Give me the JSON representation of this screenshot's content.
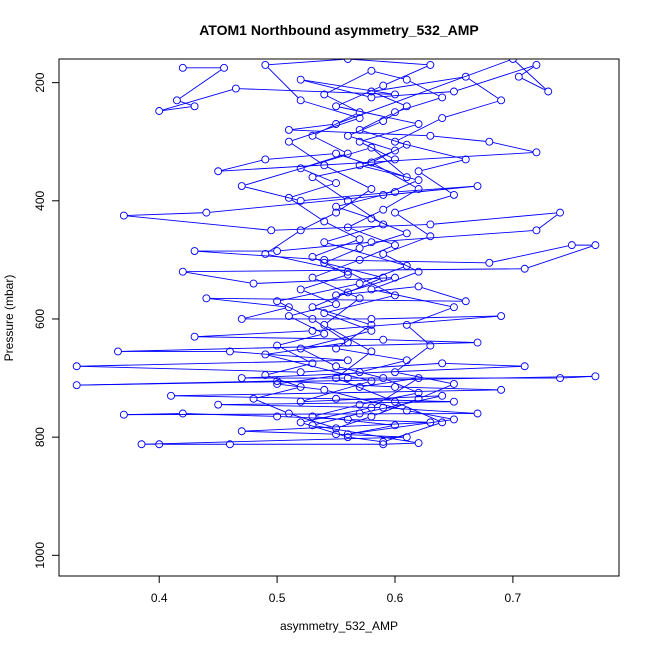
{
  "chart_data": {
    "type": "line",
    "title": "ATOM1 Northbound asymmetry_532_AMP",
    "xlabel": "asymmetry_532_AMP",
    "ylabel": "Pressure (mbar)",
    "xlim": [
      0.315,
      0.79
    ],
    "ylim": [
      1035,
      160
    ],
    "y_reversed": true,
    "xticks": [
      0.4,
      0.5,
      0.6,
      0.7
    ],
    "xtick_labels": [
      "0.4",
      "0.5",
      "0.6",
      "0.7"
    ],
    "yticks": [
      200,
      400,
      600,
      800,
      1000
    ],
    "ytick_labels": [
      "200",
      "400",
      "600",
      "800",
      "1000"
    ],
    "grid": false,
    "legend": "none",
    "marker": "open-circle",
    "colors": {
      "series": "#0000ff",
      "axis": "#000000",
      "background": "#ffffff"
    },
    "series": [
      {
        "points": [
          [
            0.42,
            175
          ],
          [
            0.455,
            175
          ],
          [
            0.415,
            230
          ],
          [
            0.43,
            240
          ],
          [
            0.4,
            248
          ],
          [
            0.465,
            210
          ],
          [
            0.6,
            220
          ],
          [
            0.52,
            195
          ],
          [
            0.58,
            225
          ],
          [
            0.65,
            215
          ],
          [
            0.72,
            170
          ],
          [
            0.705,
            190
          ],
          [
            0.73,
            215
          ],
          [
            0.7,
            160
          ],
          [
            0.55,
            270
          ],
          [
            0.51,
            280
          ],
          [
            0.63,
            290
          ],
          [
            0.68,
            300
          ],
          [
            0.72,
            318
          ],
          [
            0.45,
            350
          ],
          [
            0.49,
            330
          ],
          [
            0.55,
            320
          ],
          [
            0.61,
            360
          ],
          [
            0.58,
            310
          ],
          [
            0.47,
            375
          ],
          [
            0.52,
            400
          ],
          [
            0.6,
            385
          ],
          [
            0.67,
            375
          ],
          [
            0.44,
            420
          ],
          [
            0.37,
            425
          ],
          [
            0.495,
            450
          ],
          [
            0.63,
            440
          ],
          [
            0.74,
            420
          ],
          [
            0.72,
            450
          ],
          [
            0.58,
            470
          ],
          [
            0.5,
            485
          ],
          [
            0.43,
            485
          ],
          [
            0.54,
            500
          ],
          [
            0.68,
            505
          ],
          [
            0.75,
            475
          ],
          [
            0.77,
            475
          ],
          [
            0.71,
            515
          ],
          [
            0.42,
            520
          ],
          [
            0.48,
            540
          ],
          [
            0.6,
            530
          ],
          [
            0.55,
            560
          ],
          [
            0.62,
            545
          ],
          [
            0.66,
            570
          ],
          [
            0.44,
            565
          ],
          [
            0.51,
            580
          ],
          [
            0.47,
            600
          ],
          [
            0.58,
            600
          ],
          [
            0.69,
            595
          ],
          [
            0.53,
            620
          ],
          [
            0.43,
            630
          ],
          [
            0.59,
            635
          ],
          [
            0.67,
            640
          ],
          [
            0.365,
            655
          ],
          [
            0.46,
            655
          ],
          [
            0.56,
            670
          ],
          [
            0.33,
            680
          ],
          [
            0.52,
            690
          ],
          [
            0.64,
            675
          ],
          [
            0.71,
            680
          ],
          [
            0.47,
            700
          ],
          [
            0.56,
            700
          ],
          [
            0.74,
            700
          ],
          [
            0.77,
            697
          ],
          [
            0.33,
            712
          ],
          [
            0.5,
            705
          ],
          [
            0.6,
            715
          ],
          [
            0.69,
            720
          ],
          [
            0.41,
            730
          ],
          [
            0.55,
            735
          ],
          [
            0.65,
            740
          ],
          [
            0.45,
            745
          ],
          [
            0.59,
            750
          ],
          [
            0.67,
            760
          ],
          [
            0.37,
            762
          ],
          [
            0.42,
            760
          ],
          [
            0.5,
            765
          ],
          [
            0.56,
            770
          ],
          [
            0.63,
            775
          ],
          [
            0.47,
            790
          ],
          [
            0.55,
            795
          ],
          [
            0.61,
            800
          ],
          [
            0.385,
            812
          ],
          [
            0.4,
            812
          ],
          [
            0.46,
            812
          ],
          [
            0.59,
            812
          ],
          [
            0.62,
            810
          ],
          [
            0.53,
            780
          ],
          [
            0.57,
            760
          ],
          [
            0.64,
            730
          ],
          [
            0.52,
            740
          ],
          [
            0.58,
            705
          ],
          [
            0.49,
            660
          ],
          [
            0.56,
            640
          ],
          [
            0.53,
            600
          ],
          [
            0.5,
            570
          ],
          [
            0.57,
            540
          ],
          [
            0.61,
            510
          ],
          [
            0.54,
            470
          ],
          [
            0.59,
            440
          ],
          [
            0.56,
            400
          ],
          [
            0.53,
            360
          ],
          [
            0.6,
            330
          ],
          [
            0.57,
            300
          ],
          [
            0.62,
            270
          ],
          [
            0.55,
            240
          ],
          [
            0.59,
            205
          ],
          [
            0.63,
            170
          ],
          [
            0.56,
            160
          ],
          [
            0.49,
            170
          ],
          [
            0.52,
            230
          ],
          [
            0.57,
            260
          ],
          [
            0.51,
            300
          ],
          [
            0.54,
            340
          ],
          [
            0.58,
            380
          ],
          [
            0.55,
            420
          ],
          [
            0.52,
            450
          ],
          [
            0.49,
            490
          ],
          [
            0.56,
            520
          ],
          [
            0.6,
            560
          ],
          [
            0.54,
            590
          ],
          [
            0.58,
            620
          ],
          [
            0.52,
            650
          ],
          [
            0.55,
            680
          ],
          [
            0.59,
            700
          ],
          [
            0.62,
            725
          ],
          [
            0.57,
            745
          ],
          [
            0.53,
            765
          ],
          [
            0.6,
            780
          ],
          [
            0.56,
            795
          ],
          [
            0.65,
            770
          ],
          [
            0.61,
            755
          ],
          [
            0.54,
            720
          ],
          [
            0.5,
            710
          ],
          [
            0.57,
            690
          ],
          [
            0.61,
            670
          ],
          [
            0.55,
            650
          ],
          [
            0.58,
            610
          ],
          [
            0.53,
            580
          ],
          [
            0.56,
            555
          ],
          [
            0.59,
            530
          ],
          [
            0.54,
            505
          ],
          [
            0.57,
            480
          ],
          [
            0.61,
            455
          ],
          [
            0.58,
            430
          ],
          [
            0.55,
            410
          ],
          [
            0.59,
            390
          ],
          [
            0.62,
            365
          ],
          [
            0.57,
            340
          ],
          [
            0.6,
            315
          ],
          [
            0.56,
            290
          ],
          [
            0.59,
            265
          ],
          [
            0.61,
            240
          ],
          [
            0.58,
            215
          ],
          [
            0.66,
            190
          ],
          [
            0.69,
            230
          ],
          [
            0.64,
            260
          ],
          [
            0.6,
            300
          ],
          [
            0.66,
            330
          ],
          [
            0.62,
            350
          ],
          [
            0.65,
            390
          ],
          [
            0.6,
            420
          ],
          [
            0.63,
            460
          ],
          [
            0.59,
            490
          ],
          [
            0.62,
            520
          ],
          [
            0.58,
            550
          ],
          [
            0.65,
            580
          ],
          [
            0.61,
            610
          ],
          [
            0.63,
            645
          ],
          [
            0.6,
            690
          ],
          [
            0.65,
            710
          ],
          [
            0.62,
            735
          ],
          [
            0.58,
            765
          ],
          [
            0.55,
            785
          ],
          [
            0.51,
            760
          ],
          [
            0.48,
            735
          ],
          [
            0.52,
            715
          ],
          [
            0.49,
            695
          ],
          [
            0.53,
            675
          ],
          [
            0.5,
            645
          ],
          [
            0.54,
            625
          ],
          [
            0.51,
            595
          ],
          [
            0.55,
            575
          ],
          [
            0.52,
            550
          ],
          [
            0.56,
            525
          ],
          [
            0.53,
            495
          ],
          [
            0.57,
            465
          ],
          [
            0.54,
            435
          ],
          [
            0.51,
            395
          ],
          [
            0.55,
            370
          ],
          [
            0.52,
            345
          ],
          [
            0.56,
            320
          ],
          [
            0.53,
            290
          ],
          [
            0.57,
            250
          ],
          [
            0.54,
            220
          ],
          [
            0.58,
            180
          ],
          [
            0.61,
            195
          ],
          [
            0.64,
            225
          ],
          [
            0.6,
            250
          ],
          [
            0.57,
            280
          ],
          [
            0.61,
            305
          ],
          [
            0.58,
            335
          ],
          [
            0.62,
            380
          ],
          [
            0.59,
            415
          ],
          [
            0.56,
            445
          ],
          [
            0.6,
            475
          ],
          [
            0.57,
            500
          ],
          [
            0.53,
            530
          ],
          [
            0.57,
            565
          ],
          [
            0.54,
            610
          ],
          [
            0.58,
            655
          ],
          [
            0.55,
            700
          ],
          [
            0.6,
            740
          ],
          [
            0.64,
            775
          ],
          [
            0.59,
            808
          ],
          [
            0.56,
            800
          ],
          [
            0.52,
            775
          ],
          [
            0.58,
            750
          ],
          [
            0.62,
            700
          ],
          [
            0.57,
            715
          ]
        ]
      }
    ]
  }
}
